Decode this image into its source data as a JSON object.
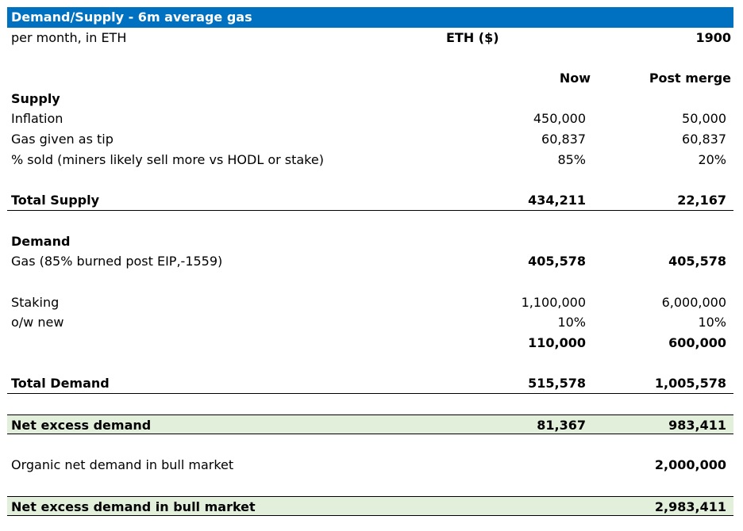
{
  "title": "Demand/Supply - 6m average gas",
  "subheader": {
    "label": "per month, in ETH",
    "eth_label": "ETH ($)",
    "eth_price": "1900"
  },
  "columns": {
    "now": "Now",
    "post": "Post merge"
  },
  "supply": {
    "heading": "Supply",
    "rows": [
      {
        "label": "Inflation",
        "now": "450,000",
        "post": "50,000"
      },
      {
        "label": "Gas given as tip",
        "now": "60,837",
        "post": "60,837"
      },
      {
        "label": "% sold (miners likely sell more vs HODL or stake)",
        "now": "85%",
        "post": "20%"
      }
    ],
    "total": {
      "label": "Total Supply",
      "now": "434,211",
      "post": "22,167"
    }
  },
  "demand": {
    "heading": "Demand",
    "gas": {
      "label": "Gas (85% burned post EIP,-1559)",
      "now": "405,578",
      "post": "405,578"
    },
    "staking": {
      "label": "Staking",
      "now": "1,100,000",
      "post": "6,000,000"
    },
    "ow_new": {
      "label": "o/w new",
      "now": "10%",
      "post": "10%"
    },
    "new_staking": {
      "now": "110,000",
      "post": "600,000"
    },
    "total": {
      "label": "Total Demand",
      "now": "515,578",
      "post": "1,005,578"
    }
  },
  "net_excess": {
    "label": "Net excess demand",
    "now": "81,367",
    "post": "983,411"
  },
  "organic": {
    "label": "Organic net demand in bull market",
    "post": "2,000,000"
  },
  "net_excess_bull": {
    "label": "Net excess demand in bull market",
    "post": "2,983,411"
  }
}
